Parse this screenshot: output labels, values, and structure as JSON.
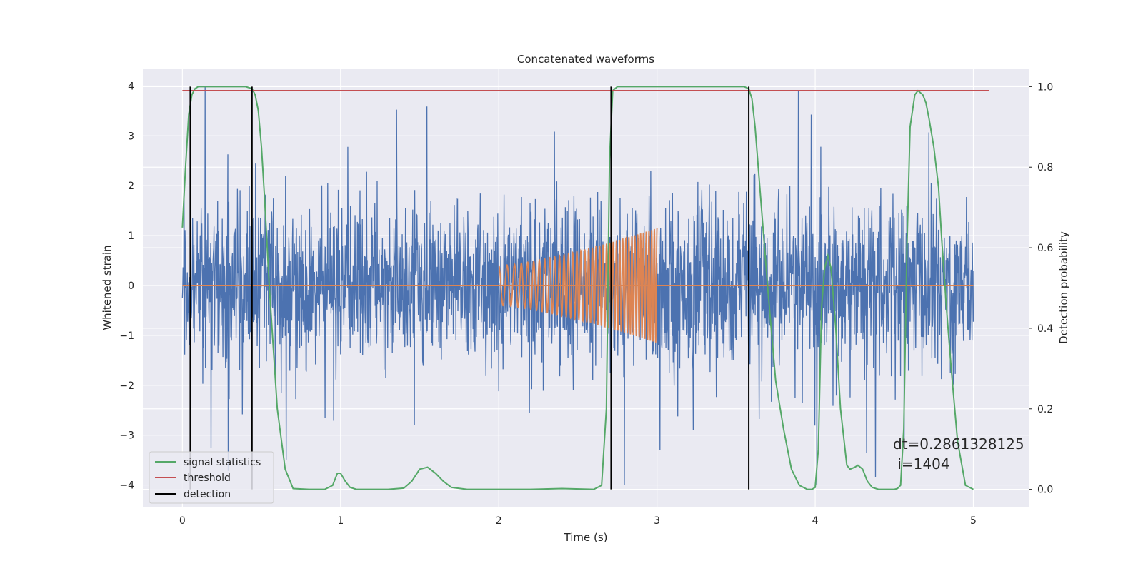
{
  "chart_data": {
    "type": "line",
    "title": "Concatenated waveforms",
    "xlabel": "Time (s)",
    "ylabel": "Whitened strain",
    "ylabel_right": "Detection probability",
    "xlim": [
      -0.25,
      5.35
    ],
    "ylim": [
      -4.45,
      4.35
    ],
    "ylim_right": [
      -0.045,
      1.045
    ],
    "x_ticks": [
      0,
      1,
      2,
      3,
      4,
      5
    ],
    "y_ticks": [
      -4,
      -3,
      -2,
      -1,
      0,
      1,
      2,
      3,
      4
    ],
    "y_ticks_right": [
      0.0,
      0.2,
      0.4,
      0.6,
      0.8,
      1.0
    ],
    "grid": true,
    "legend_position": "lower-left",
    "colors": {
      "noise": "#4c72b0",
      "signal": "#dd8452",
      "statistics": "#55a868",
      "threshold": "#c44e52",
      "detection": "#000000",
      "background": "#eaeaf2"
    },
    "series": [
      {
        "name": "signal statistics",
        "axis": "right",
        "x": [
          0.0,
          0.02,
          0.04,
          0.06,
          0.08,
          0.1,
          0.2,
          0.4,
          0.44,
          0.46,
          0.48,
          0.5,
          0.52,
          0.55,
          0.6,
          0.65,
          0.7,
          0.8,
          0.9,
          0.95,
          0.98,
          1.0,
          1.03,
          1.06,
          1.1,
          1.2,
          1.3,
          1.4,
          1.45,
          1.5,
          1.55,
          1.6,
          1.65,
          1.7,
          1.8,
          2.0,
          2.2,
          2.4,
          2.6,
          2.65,
          2.68,
          2.7,
          2.72,
          2.75,
          2.8,
          3.0,
          3.2,
          3.4,
          3.55,
          3.58,
          3.6,
          3.62,
          3.65,
          3.7,
          3.75,
          3.8,
          3.85,
          3.9,
          3.95,
          3.98,
          4.0,
          4.02,
          4.04,
          4.06,
          4.08,
          4.1,
          4.13,
          4.16,
          4.2,
          4.22,
          4.25,
          4.27,
          4.3,
          4.33,
          4.36,
          4.4,
          4.45,
          4.5,
          4.52,
          4.54,
          4.56,
          4.58,
          4.6,
          4.63,
          4.65,
          4.68,
          4.7,
          4.72,
          4.75,
          4.78,
          4.8,
          4.83,
          4.86,
          4.9,
          4.95,
          5.0
        ],
        "y": [
          0.65,
          0.8,
          0.93,
          0.98,
          0.995,
          1.0,
          1.0,
          1.0,
          0.995,
          0.98,
          0.94,
          0.85,
          0.72,
          0.5,
          0.2,
          0.05,
          0.002,
          0.0,
          0.0,
          0.01,
          0.04,
          0.04,
          0.02,
          0.005,
          0.0,
          0.0,
          0.0,
          0.003,
          0.02,
          0.05,
          0.055,
          0.04,
          0.02,
          0.005,
          0.0,
          0.0,
          0.0,
          0.002,
          0.0,
          0.01,
          0.2,
          0.82,
          0.99,
          1.0,
          1.0,
          1.0,
          1.0,
          1.0,
          1.0,
          0.995,
          0.97,
          0.9,
          0.75,
          0.5,
          0.27,
          0.15,
          0.05,
          0.01,
          0.0,
          0.0,
          0.005,
          0.1,
          0.45,
          0.55,
          0.58,
          0.55,
          0.4,
          0.2,
          0.06,
          0.05,
          0.055,
          0.06,
          0.05,
          0.02,
          0.005,
          0.0,
          0.0,
          0.0,
          0.002,
          0.01,
          0.15,
          0.6,
          0.9,
          0.98,
          0.99,
          0.98,
          0.96,
          0.92,
          0.85,
          0.75,
          0.62,
          0.45,
          0.3,
          0.12,
          0.01,
          0.0
        ]
      },
      {
        "name": "threshold",
        "axis": "right",
        "x": [
          0.0,
          5.1
        ],
        "y": [
          0.99,
          0.99
        ]
      },
      {
        "name": "detection",
        "axis": "right",
        "x": [
          0.05,
          0.44,
          2.71,
          3.58
        ],
        "y_range": [
          0.0,
          1.0
        ]
      }
    ],
    "signal_chirp": {
      "t_start": 2.0,
      "t_end": 3.0,
      "amplitude_start": 0.4,
      "amplitude_end": 1.15,
      "f_start": 18,
      "f_end": 60
    },
    "noise_band": {
      "t_start": 0.0,
      "t_end": 5.0,
      "core_std": 0.8,
      "peak_abs": 4.0
    },
    "annotations": [
      {
        "text": "dt=0.2861328125",
        "x": 4.5,
        "y": 0.11
      },
      {
        "text": " i=1404",
        "x": 4.5,
        "y": 0.06
      }
    ]
  }
}
